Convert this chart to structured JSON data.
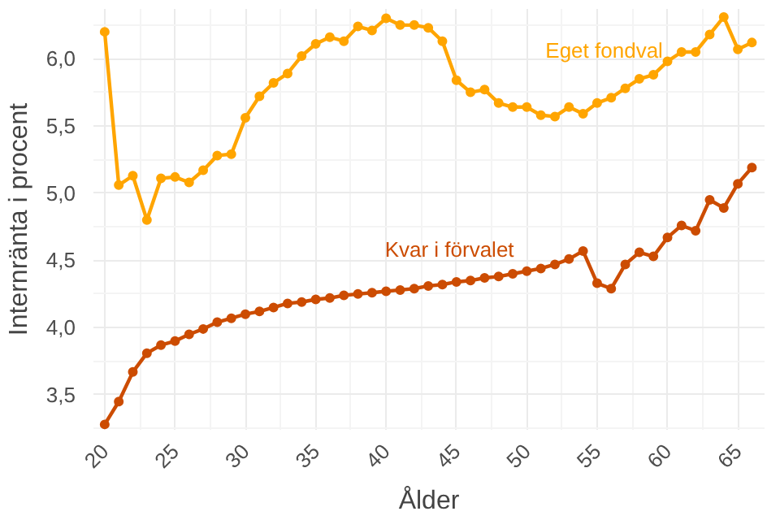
{
  "chart_data": {
    "type": "line",
    "xlabel": "Ålder",
    "ylabel": "Internränta i procent",
    "x": [
      20,
      21,
      22,
      23,
      24,
      25,
      26,
      27,
      28,
      29,
      30,
      31,
      32,
      33,
      34,
      35,
      36,
      37,
      38,
      39,
      40,
      41,
      42,
      43,
      44,
      45,
      46,
      47,
      48,
      49,
      50,
      51,
      52,
      53,
      54,
      55,
      56,
      57,
      58,
      59,
      60,
      61,
      62,
      63,
      64,
      65,
      66
    ],
    "series": [
      {
        "name": "Eget fondval",
        "color": "#ffa500",
        "values": [
          6.2,
          5.06,
          5.13,
          4.8,
          5.11,
          5.12,
          5.08,
          5.17,
          5.28,
          5.29,
          5.56,
          5.72,
          5.82,
          5.89,
          6.02,
          6.11,
          6.16,
          6.13,
          6.24,
          6.21,
          6.3,
          6.25,
          6.25,
          6.23,
          6.13,
          5.84,
          5.75,
          5.77,
          5.67,
          5.64,
          5.64,
          5.58,
          5.57,
          5.64,
          5.59,
          5.67,
          5.71,
          5.78,
          5.85,
          5.88,
          5.98,
          6.05,
          6.05,
          6.18,
          6.31,
          6.07,
          6.12
        ]
      },
      {
        "name": "Kvar i förvalet",
        "color": "#cc4c02",
        "values": [
          3.28,
          3.45,
          3.67,
          3.81,
          3.87,
          3.9,
          3.95,
          3.99,
          4.04,
          4.07,
          4.1,
          4.12,
          4.15,
          4.18,
          4.19,
          4.21,
          4.22,
          4.24,
          4.25,
          4.26,
          4.27,
          4.28,
          4.29,
          4.31,
          4.32,
          4.34,
          4.35,
          4.37,
          4.38,
          4.4,
          4.42,
          4.44,
          4.47,
          4.51,
          4.57,
          4.33,
          4.29,
          4.47,
          4.56,
          4.53,
          4.67,
          4.76,
          4.72,
          4.95,
          4.89,
          5.07,
          5.19
        ]
      }
    ],
    "xlim": [
      19.2,
      66.9
    ],
    "ylim": [
      3.24,
      6.37
    ],
    "xticks": [
      20,
      25,
      30,
      35,
      40,
      45,
      50,
      55,
      60,
      65
    ],
    "yticks": [
      {
        "value": 3.5,
        "label": "3,5"
      },
      {
        "value": 4.0,
        "label": "4,0"
      },
      {
        "value": 4.5,
        "label": "4,5"
      },
      {
        "value": 5.0,
        "label": "5,0"
      },
      {
        "value": 5.5,
        "label": "5,5"
      },
      {
        "value": 6.0,
        "label": "6,0"
      }
    ],
    "grid": true,
    "legend": false,
    "marker": "circle",
    "line_style": "solid"
  }
}
